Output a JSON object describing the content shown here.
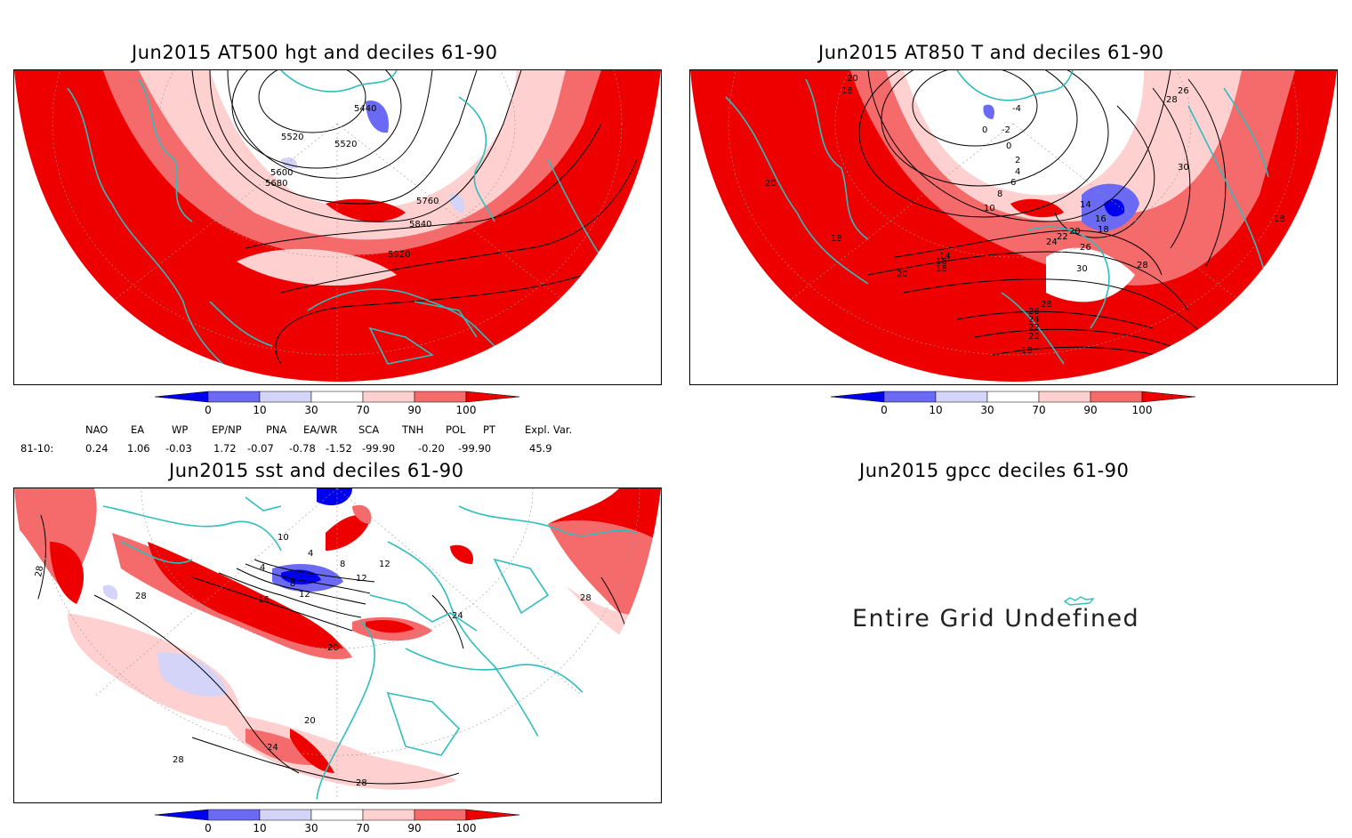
{
  "panels": {
    "hgt500": {
      "title": "Jun2015 AT500 hgt and deciles 61-90",
      "contour_labels": [
        "5440",
        "5520",
        "5520",
        "5600",
        "5680",
        "5760",
        "5840",
        "5920"
      ]
    },
    "t850": {
      "title": "Jun2015 AT850 T and deciles 61-90",
      "contour_labels": [
        "20",
        "18",
        "0",
        "-4",
        "-2",
        "0",
        "2",
        "4",
        "6",
        "8",
        "10",
        "14",
        "18",
        "16",
        "20",
        "22",
        "24",
        "26",
        "28",
        "30",
        "30",
        "26",
        "28",
        "18",
        "18",
        "20",
        "14",
        "16",
        "18",
        "28",
        "26",
        "24",
        "22",
        "20",
        "18",
        "20"
      ]
    },
    "sst": {
      "title": "Jun2015 sst and deciles 61-90",
      "contour_labels": [
        "28",
        "28",
        "20",
        "16",
        "12",
        "8",
        "4",
        "4",
        "8",
        "12",
        "20",
        "24",
        "28",
        "28",
        "28",
        "10",
        "12",
        "24",
        "26"
      ]
    },
    "gpcc": {
      "title": "Jun2015 gpcc deciles 61-90",
      "message": "Entire Grid Undefined"
    }
  },
  "colorbar": {
    "tick_labels": [
      "0",
      "10",
      "30",
      "70",
      "90",
      "100"
    ],
    "colors": [
      "#0000ee",
      "#6a6af5",
      "#d4d4f8",
      "#ffffff",
      "#ffd0d0",
      "#f56a6a",
      "#ee0000"
    ]
  },
  "indices": {
    "headers": [
      "NAO",
      "EA",
      "WP",
      "EP/NP",
      "PNA",
      "EA/WR",
      "SCA",
      "TNH",
      "POL",
      "PT",
      "Expl. Var."
    ],
    "row_label": "81-10:",
    "values": [
      "0.24",
      "1.06",
      "-0.03",
      "1.72",
      "-0.07",
      "-0.78",
      "-1.52",
      "-99.90",
      "-0.20",
      "-99.90",
      "45.9"
    ]
  },
  "map_colors": {
    "coast": "#2fbdbd",
    "contour": "#000000"
  }
}
